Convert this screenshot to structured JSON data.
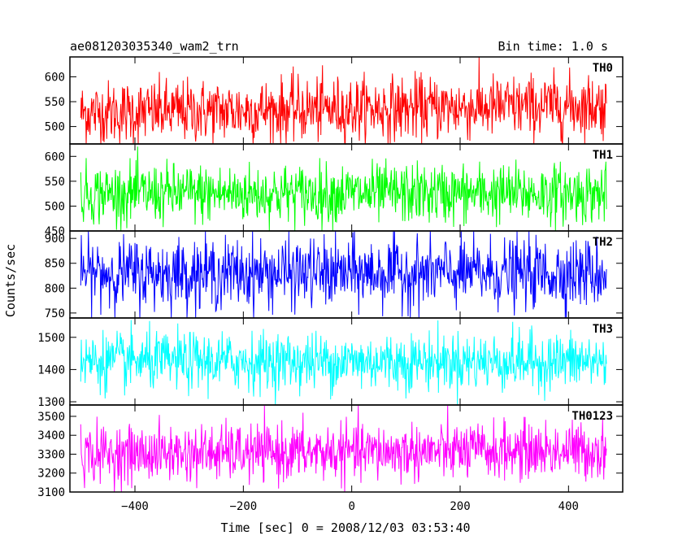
{
  "header": {
    "title": "ae081203035340_wam2_trn",
    "bin_time": "Bin time: 1.0 s"
  },
  "chart_data": {
    "type": "line",
    "title": "ae081203035340_wam2_trn",
    "subtitle": "Bin time: 1.0 s",
    "xlabel": "Time [sec] 0 = 2008/12/03 03:53:40",
    "ylabel": "Counts/sec",
    "xlim": [
      -520,
      500
    ],
    "x_range": [
      -500,
      470
    ],
    "bin_time": 1.0,
    "grid": false,
    "x_ticks": [
      -400,
      -200,
      0,
      200,
      400
    ],
    "panels": [
      {
        "name": "TH0",
        "color": "#ff0000",
        "ylim": [
          465,
          640
        ],
        "y_ticks": [
          500,
          550,
          600
        ],
        "mean": 535,
        "noise_sd": 32,
        "trend": 15
      },
      {
        "name": "TH1",
        "color": "#00ff00",
        "ylim": [
          450,
          625
        ],
        "y_ticks": [
          450,
          500,
          550,
          600
        ],
        "mean": 525,
        "noise_sd": 30,
        "trend": 0
      },
      {
        "name": "TH2",
        "color": "#0000ff",
        "ylim": [
          740,
          915
        ],
        "y_ticks": [
          750,
          800,
          850,
          900
        ],
        "mean": 830,
        "noise_sd": 35,
        "trend": 0
      },
      {
        "name": "TH3",
        "color": "#00ffff",
        "ylim": [
          1290,
          1560
        ],
        "y_ticks": [
          1300,
          1400,
          1500
        ],
        "mean": 1425,
        "noise_sd": 45,
        "trend": 0
      },
      {
        "name": "TH0123",
        "color": "#ff00ff",
        "ylim": [
          3100,
          3560
        ],
        "y_ticks": [
          3100,
          3200,
          3300,
          3400,
          3500
        ],
        "mean": 3310,
        "noise_sd": 75,
        "trend": 20
      }
    ]
  }
}
